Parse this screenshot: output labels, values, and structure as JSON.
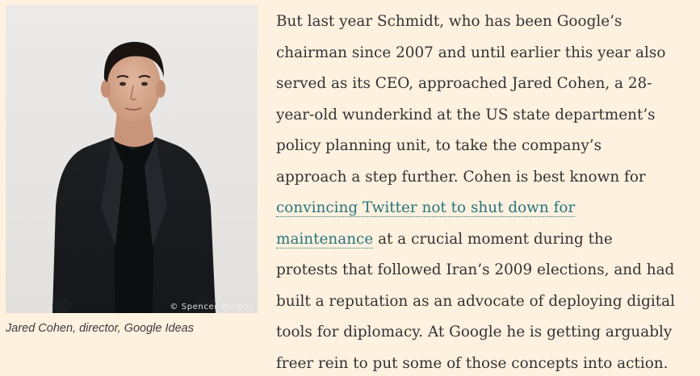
{
  "figure": {
    "credit": "© Spencer Murphy",
    "caption": "Jared Cohen, director, Google Ideas"
  },
  "article": {
    "lines": {
      "l1": "But last year Schmidt, who has been Google’s",
      "l2": "chairman since 2007 and until earlier this year also",
      "l3": "served as its CEO, approached Jared Cohen, a 28-",
      "l4": "year-old wunderkind at the US state department’s",
      "l5": "policy planning unit, to take the company’s",
      "l6": "approach a step further. Cohen is best known for",
      "l7_link": "convincing Twitter not to shut down for",
      "l8_link": "maintenance",
      "l8_rest": " at a crucial moment during the",
      "l9": "protests that followed Iran’s 2009 elections, and had",
      "l10": "built a reputation as an advocate of deploying digital",
      "l11": "tools for diplomacy. At Google he is getting arguably",
      "l12": "freer rein to put some of those concepts into action."
    }
  },
  "colors": {
    "background": "#fff1e0",
    "text": "#333333",
    "link": "#27757b"
  }
}
